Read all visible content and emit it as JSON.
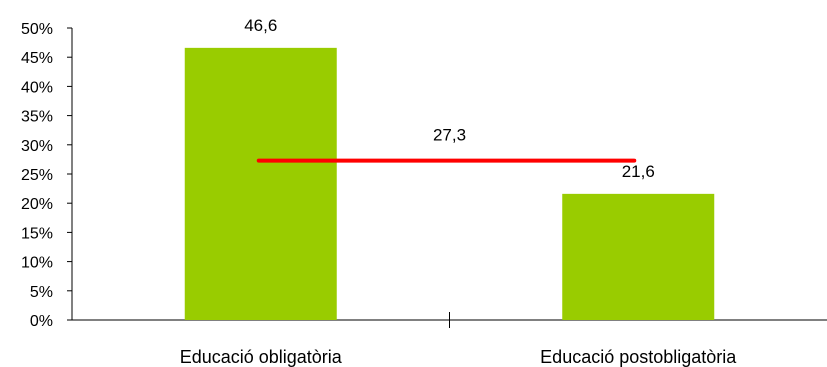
{
  "chart_data": {
    "type": "bar",
    "title": "",
    "xlabel": "",
    "ylabel": "",
    "ylim": [
      0,
      50
    ],
    "y_ticks": [
      "0%",
      "5%",
      "10%",
      "15%",
      "20%",
      "25%",
      "30%",
      "35%",
      "40%",
      "45%",
      "50%"
    ],
    "categories": [
      "Educació obligatòria",
      "Educació postobligatòria"
    ],
    "values": [
      46.6,
      21.6
    ],
    "value_labels": [
      "46,6",
      "21,6"
    ],
    "reference_line": {
      "value": 27.3,
      "label": "27,3"
    },
    "grid": false,
    "legend": "none",
    "colors": {
      "bar": "#99CC00",
      "reference_line": "#FF0000",
      "axis": "#000000"
    }
  }
}
